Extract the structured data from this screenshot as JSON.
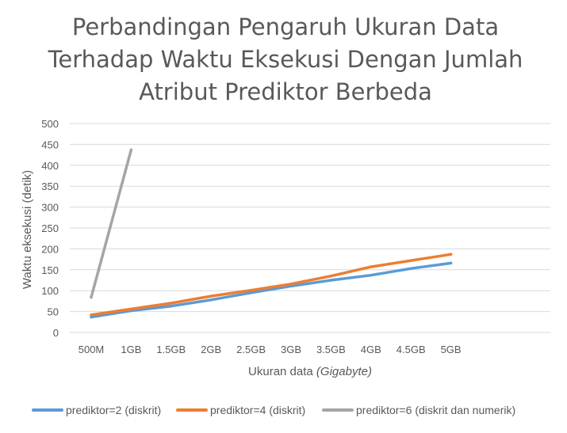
{
  "chart_data": {
    "type": "line",
    "title_lines": [
      "Perbandingan Pengaruh Ukuran Data",
      "Terhadap Waktu Eksekusi Dengan Jumlah",
      "Atribut Prediktor Berbeda"
    ],
    "xlabel": "Ukuran data",
    "xlabel_italic": "(Gigabyte)",
    "ylabel": "Waktu eksekusi (detik)",
    "categories": [
      "500M",
      "1GB",
      "1.5GB",
      "2GB",
      "2.5GB",
      "3GB",
      "3.5GB",
      "4GB",
      "4.5GB",
      "5GB"
    ],
    "ylim": [
      0,
      500
    ],
    "yticks": [
      0,
      50,
      100,
      150,
      200,
      250,
      300,
      350,
      400,
      450,
      500
    ],
    "grid": true,
    "legend_position": "bottom",
    "series": [
      {
        "name": "prediktor=2 (diskrit)",
        "color": "#5B9BD5",
        "values": [
          37,
          52,
          63,
          78,
          95,
          111,
          125,
          137,
          153,
          166
        ]
      },
      {
        "name": "prediktor=4 (diskrit)",
        "color": "#ED7D31",
        "values": [
          42,
          56,
          70,
          87,
          101,
          116,
          135,
          157,
          172,
          187
        ]
      },
      {
        "name": "prediktor=6 (diskrit dan numerik)",
        "color": "#A5A5A5",
        "values": [
          84,
          437,
          null,
          null,
          null,
          null,
          null,
          null,
          null,
          null
        ]
      }
    ]
  }
}
